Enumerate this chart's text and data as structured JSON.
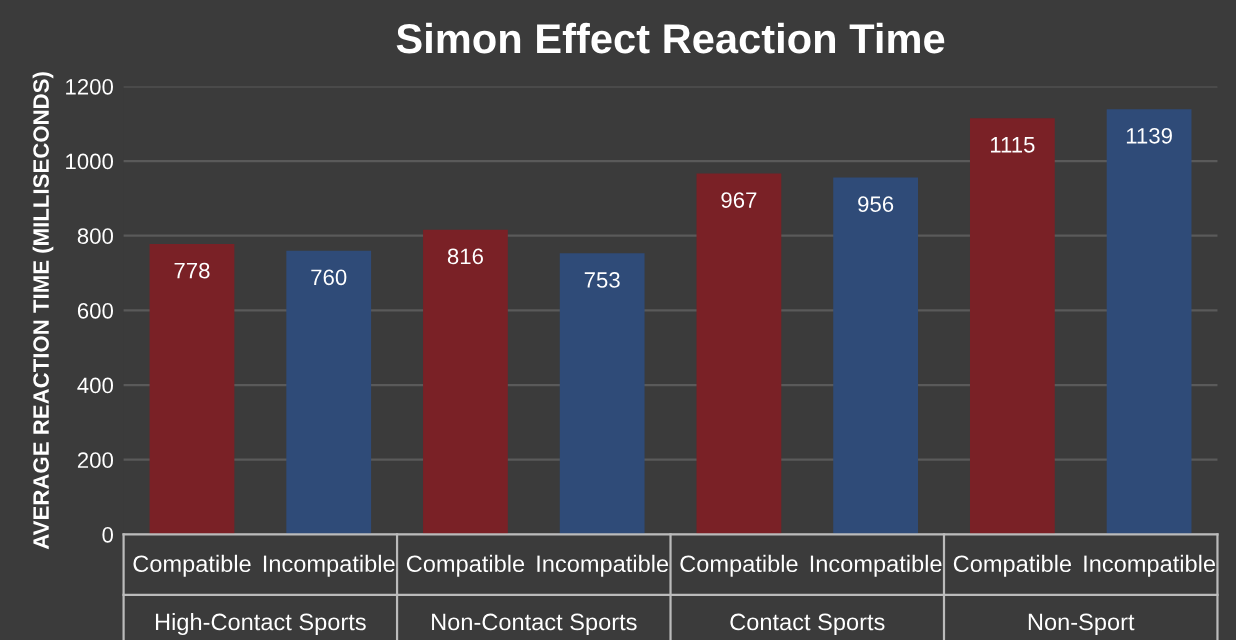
{
  "chart_data": {
    "type": "bar",
    "title": "Simon Effect Reaction Time",
    "ylabel": "AVERAGE REACTION TIME (MILLISECONDS)",
    "categories": [
      "High-Contact Sports",
      "Non-Contact Sports",
      "Contact Sports",
      "Non-Sport"
    ],
    "series": [
      {
        "name": "Compatible",
        "color": "#7a2126",
        "values": [
          778,
          816,
          967,
          1115
        ]
      },
      {
        "name": "Incompatible",
        "color": "#2f4b78",
        "values": [
          760,
          753,
          956,
          1139
        ]
      }
    ],
    "ylim": [
      0,
      1200
    ],
    "yticks": [
      0,
      200,
      400,
      600,
      800,
      1000,
      1200
    ],
    "grid": "y",
    "data_labels": true,
    "legend": false
  }
}
